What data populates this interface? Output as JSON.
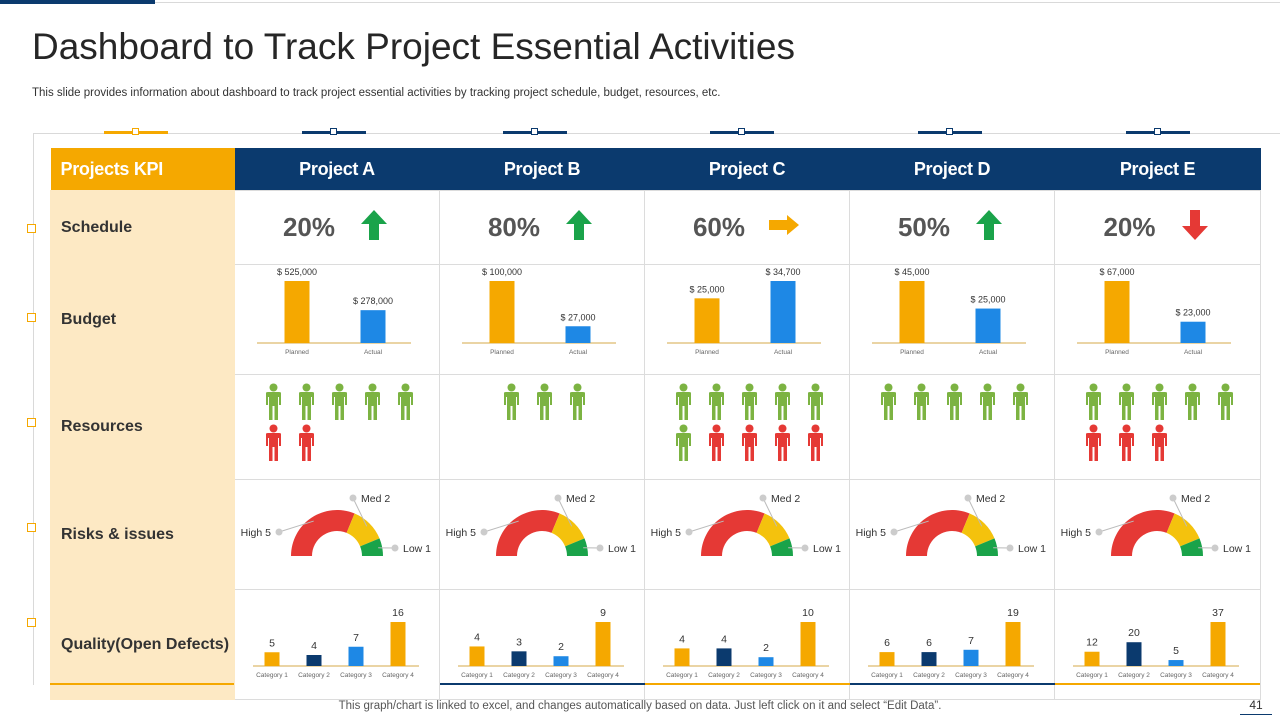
{
  "header": {
    "title": "Dashboard to Track Project Essential Activities",
    "subtitle": "This slide provides information about dashboard to track project essential activities by tracking project schedule, budget, resources, etc."
  },
  "table": {
    "kpi_header": "Projects KPI",
    "rows": [
      "Schedule",
      "Budget",
      "Resources",
      "Risks & issues",
      "Quality(Open Defects)"
    ]
  },
  "colors": {
    "navy": "#0b3a6e",
    "orange": "#f5a800",
    "blue": "#1e88e5",
    "green": "#1aa34a",
    "red": "#e53935",
    "light_green": "#7cb342",
    "yellow": "#f4c20d",
    "person_red": "#e53935"
  },
  "projects": [
    {
      "name": "Project A",
      "schedule_pct": "20%",
      "trend": "up",
      "budget": {
        "planned_label": "$ 525,000",
        "actual_label": "$ 278,000",
        "planned": 525000,
        "actual": 278000
      },
      "resources": {
        "green": 5,
        "red": 2
      },
      "risks": {
        "high_label": "High 5",
        "med_label": "Med 2",
        "low_label": "Low 1",
        "high": 5,
        "med": 2,
        "low": 1
      },
      "defects": [
        5,
        4,
        7,
        16
      ]
    },
    {
      "name": "Project B",
      "schedule_pct": "80%",
      "trend": "up",
      "budget": {
        "planned_label": "$ 100,000",
        "actual_label": "$ 27,000",
        "planned": 100000,
        "actual": 27000
      },
      "resources": {
        "green": 3,
        "red": 0
      },
      "risks": {
        "high_label": "High 5",
        "med_label": "Med 2",
        "low_label": "Low 1",
        "high": 5,
        "med": 2,
        "low": 1
      },
      "defects": [
        4,
        3,
        2,
        9
      ]
    },
    {
      "name": "Project C",
      "schedule_pct": "60%",
      "trend": "right",
      "budget": {
        "planned_label": "$ 25,000",
        "actual_label": "$ 34,700",
        "planned": 25000,
        "actual": 34700
      },
      "resources": {
        "green": 6,
        "red": 4
      },
      "risks": {
        "high_label": "High 5",
        "med_label": "Med 2",
        "low_label": "Low 1",
        "high": 5,
        "med": 2,
        "low": 1
      },
      "defects": [
        4,
        4,
        2,
        10
      ]
    },
    {
      "name": "Project D",
      "schedule_pct": "50%",
      "trend": "up",
      "budget": {
        "planned_label": "$ 45,000",
        "actual_label": "$ 25,000",
        "planned": 45000,
        "actual": 25000
      },
      "resources": {
        "green": 5,
        "red": 0
      },
      "risks": {
        "high_label": "High 5",
        "med_label": "Med 2",
        "low_label": "Low 1",
        "high": 5,
        "med": 2,
        "low": 1
      },
      "defects": [
        6,
        6,
        7,
        19
      ]
    },
    {
      "name": "Project E",
      "schedule_pct": "20%",
      "trend": "down",
      "budget": {
        "planned_label": "$ 67,000",
        "actual_label": "$ 23,000",
        "planned": 67000,
        "actual": 23000
      },
      "resources": {
        "green": 5,
        "red": 3
      },
      "risks": {
        "high_label": "High 5",
        "med_label": "Med 2",
        "low_label": "Low 1",
        "high": 5,
        "med": 2,
        "low": 1
      },
      "defects": [
        12,
        20,
        5,
        37
      ]
    }
  ],
  "budget_axis": [
    "Planned",
    "Actual"
  ],
  "defect_categories": [
    "Category 1",
    "Category 2",
    "Category 3",
    "Category 4"
  ],
  "footer": {
    "note": "This graph/chart is linked to excel, and changes automatically based on data. Just left click on it and select “Edit Data”.",
    "page": "41"
  }
}
